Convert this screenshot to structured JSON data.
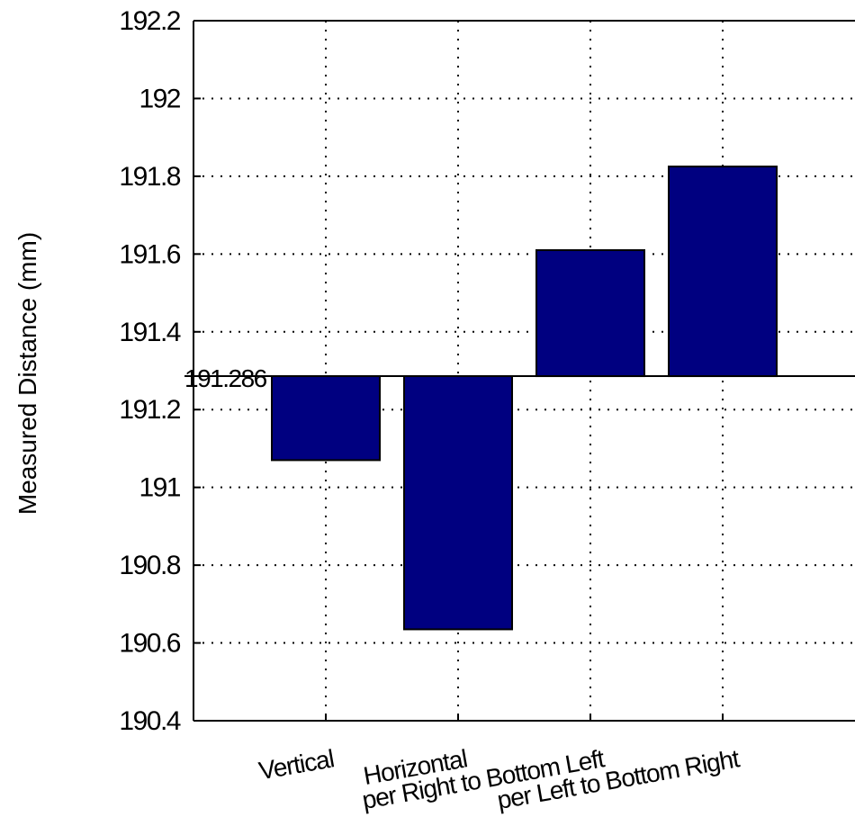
{
  "chart_data": {
    "type": "bar",
    "title": "",
    "xlabel": "",
    "ylabel": "Measured Distance (mm)",
    "ylim": [
      190.4,
      192.2
    ],
    "y_ticks": [
      190.4,
      190.6,
      190.8,
      191,
      191.2,
      191.4,
      191.6,
      191.8,
      192,
      192.2
    ],
    "y_tick_labels": [
      "190.4",
      "190.6",
      "190.8",
      "191",
      "191.2",
      "191.4",
      "191.6",
      "191.8",
      "192",
      "192.2"
    ],
    "grid": true,
    "baseline": 191.286,
    "baseline_label": "191.286",
    "categories": [
      "Vertical",
      "Horizontal",
      "Upper Right to Bottom Left",
      "Upper Left to Bottom Right"
    ],
    "category_labels": [
      "Vertical",
      "Horizontal",
      "per Right to Bottom Left",
      "per Left to Bottom Right"
    ],
    "values": [
      191.07,
      190.635,
      191.61,
      191.825
    ],
    "bar_color": "#000080",
    "axis_color": "#000000"
  }
}
